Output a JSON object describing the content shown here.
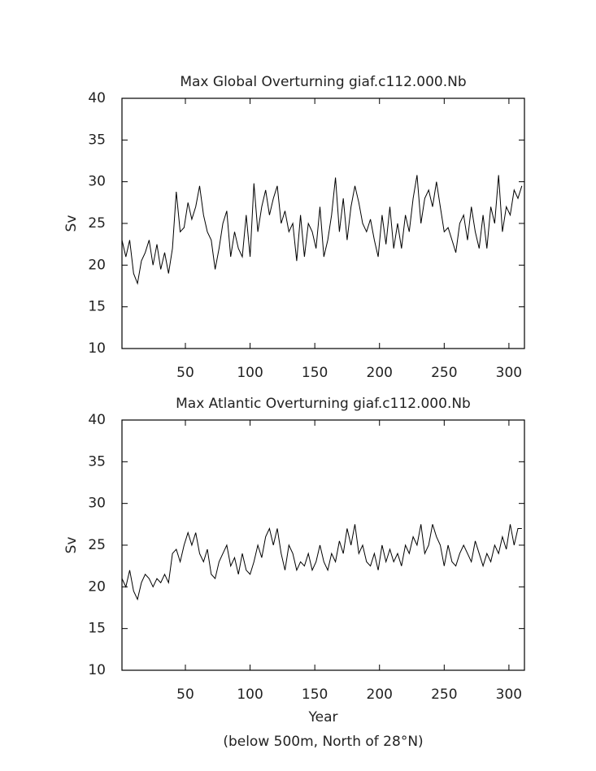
{
  "chart_data": [
    {
      "type": "line",
      "title": "Max Global Overturning giaf.c112.000.Nb",
      "ylabel": "Sv",
      "color": "#000000",
      "x": [
        1,
        4,
        7,
        10,
        13,
        16,
        19,
        22,
        25,
        28,
        31,
        34,
        37,
        40,
        43,
        46,
        49,
        52,
        55,
        58,
        61,
        64,
        67,
        70,
        73,
        76,
        79,
        82,
        85,
        88,
        91,
        94,
        97,
        100,
        103,
        106,
        109,
        112,
        115,
        118,
        121,
        124,
        127,
        130,
        133,
        136,
        139,
        142,
        145,
        148,
        151,
        154,
        157,
        160,
        163,
        166,
        169,
        172,
        175,
        178,
        181,
        184,
        187,
        190,
        193,
        196,
        199,
        202,
        205,
        208,
        211,
        214,
        217,
        220,
        223,
        226,
        229,
        232,
        235,
        238,
        241,
        244,
        247,
        250,
        253,
        256,
        259,
        262,
        265,
        268,
        271,
        274,
        277,
        280,
        283,
        286,
        289,
        292,
        295,
        298,
        301,
        304,
        307,
        310
      ],
      "values": [
        23,
        21,
        23,
        19,
        17.8,
        20.5,
        21.5,
        23,
        20,
        22.5,
        19.5,
        21.5,
        19,
        22,
        28.8,
        24,
        24.5,
        27.5,
        25.5,
        27,
        29.5,
        26,
        24,
        23,
        19.5,
        22,
        25,
        26.5,
        21,
        24,
        22,
        21,
        26,
        21,
        29.8,
        24,
        27,
        29,
        26,
        28,
        29.5,
        25,
        26.5,
        24,
        25,
        20.5,
        26,
        21,
        25,
        24,
        22,
        27,
        21,
        23,
        26,
        30.5,
        24,
        28,
        23,
        27,
        29.5,
        27.5,
        25,
        24,
        25.5,
        23,
        21,
        26,
        22.5,
        27,
        22,
        25,
        22,
        26,
        24,
        28,
        30.8,
        25,
        28,
        29,
        27,
        30,
        27,
        24,
        24.5,
        23,
        21.5,
        25,
        26,
        23,
        27,
        24,
        22,
        26,
        22,
        27,
        25,
        30.8,
        24,
        27,
        26,
        29,
        28,
        29.5
      ],
      "xlim": [
        1,
        312
      ],
      "xticks": [
        50,
        100,
        150,
        200,
        250,
        300
      ],
      "ylim": [
        10,
        40
      ],
      "yticks": [
        10,
        15,
        20,
        25,
        30,
        35,
        40
      ]
    },
    {
      "type": "line",
      "title": "Max Atlantic Overturning giaf.c112.000.Nb",
      "ylabel": "Sv",
      "xlabel": "Year",
      "note": "(below 500m, North of 28°N)",
      "color": "#000000",
      "x": [
        1,
        4,
        7,
        10,
        13,
        16,
        19,
        22,
        25,
        28,
        31,
        34,
        37,
        40,
        43,
        46,
        49,
        52,
        55,
        58,
        61,
        64,
        67,
        70,
        73,
        76,
        79,
        82,
        85,
        88,
        91,
        94,
        97,
        100,
        103,
        106,
        109,
        112,
        115,
        118,
        121,
        124,
        127,
        130,
        133,
        136,
        139,
        142,
        145,
        148,
        151,
        154,
        157,
        160,
        163,
        166,
        169,
        172,
        175,
        178,
        181,
        184,
        187,
        190,
        193,
        196,
        199,
        202,
        205,
        208,
        211,
        214,
        217,
        220,
        223,
        226,
        229,
        232,
        235,
        238,
        241,
        244,
        247,
        250,
        253,
        256,
        259,
        262,
        265,
        268,
        271,
        274,
        277,
        280,
        283,
        286,
        289,
        292,
        295,
        298,
        301,
        304,
        307,
        310
      ],
      "values": [
        21,
        20,
        22,
        19.5,
        18.5,
        20.5,
        21.5,
        21,
        20,
        21,
        20.5,
        21.5,
        20.5,
        24,
        24.5,
        23,
        25,
        26.5,
        25,
        26.5,
        24,
        23,
        24.5,
        21.5,
        21,
        23,
        24,
        25,
        22.5,
        23.5,
        21.5,
        24,
        22,
        21.5,
        23,
        25,
        23.5,
        26,
        27,
        25,
        27,
        24,
        22,
        25,
        24,
        22,
        23,
        22.5,
        24,
        22,
        23,
        25,
        23,
        22,
        24,
        23,
        25.5,
        24,
        27,
        25,
        27.5,
        24,
        25,
        23,
        22.5,
        24,
        22,
        25,
        23,
        24.5,
        23,
        24,
        22.5,
        25,
        24,
        26,
        25,
        27.5,
        24,
        25,
        27.5,
        26,
        25,
        22.5,
        25,
        23,
        22.5,
        24,
        25,
        24,
        23,
        25.5,
        24,
        22.5,
        24,
        23,
        25,
        24,
        26,
        24.5,
        27.5,
        25,
        27,
        27
      ],
      "xlim": [
        1,
        312
      ],
      "xticks": [
        50,
        100,
        150,
        200,
        250,
        300
      ],
      "ylim": [
        10,
        40
      ],
      "yticks": [
        10,
        15,
        20,
        25,
        30,
        35,
        40
      ]
    }
  ]
}
